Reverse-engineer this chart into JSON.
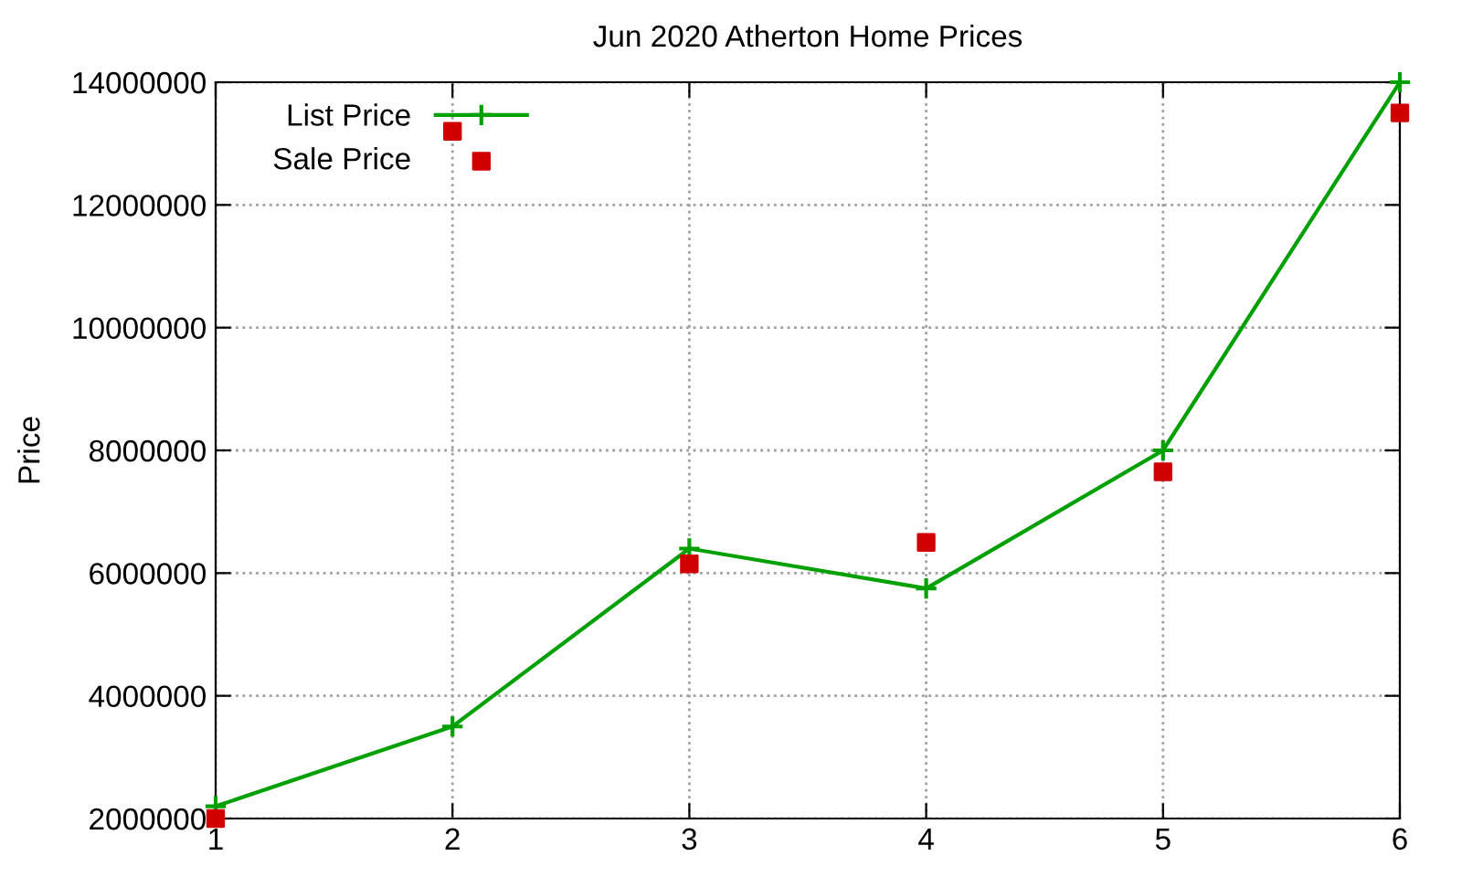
{
  "chart_data": {
    "type": "line",
    "title": "Jun 2020 Atherton Home Prices",
    "ylabel": "Price",
    "x": [
      1,
      2,
      3,
      4,
      5,
      6
    ],
    "series": [
      {
        "name": "List Price",
        "color": "#00a000",
        "marker": "cross",
        "values": [
          2200000,
          3500000,
          6400000,
          5750000,
          8000000,
          14000000
        ]
      },
      {
        "name": "Sale Price",
        "color": "#d00000",
        "type": "scatter",
        "marker": "square",
        "values": [
          2000000,
          13200000,
          6150000,
          6500000,
          7650000,
          13500000
        ]
      }
    ],
    "xlim": [
      1,
      6
    ],
    "xticks": [
      1,
      2,
      3,
      4,
      5,
      6
    ],
    "ylim": [
      2000000,
      14000000
    ],
    "yticks": [
      2000000,
      4000000,
      6000000,
      8000000,
      10000000,
      12000000,
      14000000
    ],
    "grid": true,
    "legend": "top left"
  }
}
